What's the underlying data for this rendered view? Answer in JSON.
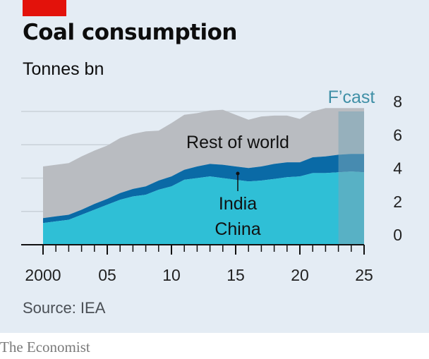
{
  "header": {
    "title": "Coal consumption",
    "subtitle": "Tonnes bn"
  },
  "footer": {
    "source": "Source: IEA",
    "brand": "The Economist"
  },
  "colors": {
    "china": "#2fbfd6",
    "india": "#0a6aa6",
    "rest_of_world": "#b9bcc1",
    "forecast_shade": "#7aa6b8",
    "accent": "#e3120b"
  },
  "chart_data": {
    "type": "area",
    "stacked": true,
    "x": [
      2000,
      2001,
      2002,
      2003,
      2004,
      2005,
      2006,
      2007,
      2008,
      2009,
      2010,
      2011,
      2012,
      2013,
      2014,
      2015,
      2016,
      2017,
      2018,
      2019,
      2020,
      2021,
      2022,
      2023,
      2024,
      2025
    ],
    "series": [
      {
        "name": "China",
        "values": [
          1.3,
          1.4,
          1.5,
          1.8,
          2.1,
          2.4,
          2.7,
          2.9,
          3.0,
          3.3,
          3.5,
          3.9,
          4.0,
          4.1,
          4.0,
          3.9,
          3.8,
          3.85,
          3.95,
          4.05,
          4.1,
          4.3,
          4.3,
          4.35,
          4.4,
          4.35
        ]
      },
      {
        "name": "India",
        "values": [
          0.3,
          0.3,
          0.3,
          0.3,
          0.35,
          0.35,
          0.4,
          0.45,
          0.5,
          0.55,
          0.6,
          0.6,
          0.7,
          0.75,
          0.8,
          0.8,
          0.8,
          0.85,
          0.9,
          0.9,
          0.85,
          0.95,
          1.0,
          1.05,
          1.05,
          1.1
        ]
      },
      {
        "name": "Rest of world",
        "values": [
          3.1,
          3.1,
          3.1,
          3.2,
          3.2,
          3.2,
          3.3,
          3.3,
          3.3,
          3.0,
          3.2,
          3.3,
          3.2,
          3.2,
          3.3,
          3.1,
          2.9,
          3.0,
          2.9,
          2.8,
          2.6,
          2.75,
          2.9,
          2.8,
          2.75,
          2.75
        ]
      }
    ],
    "forecast_label": "F’cast",
    "forecast_from": 2023,
    "x_tick_labels": [
      "2000",
      "05",
      "10",
      "15",
      "20",
      "25"
    ],
    "x_tick_values": [
      2000,
      2005,
      2010,
      2015,
      2020,
      2025
    ],
    "y_tick_labels": [
      "0",
      "2",
      "4",
      "6",
      "8"
    ],
    "y_tick_values": [
      0,
      2,
      4,
      6,
      8
    ],
    "ylim": [
      0,
      8
    ],
    "xlim": [
      2000,
      2025
    ],
    "grid": true,
    "annotations": {
      "rest": "Rest of world",
      "india": "India",
      "china": "China"
    }
  }
}
